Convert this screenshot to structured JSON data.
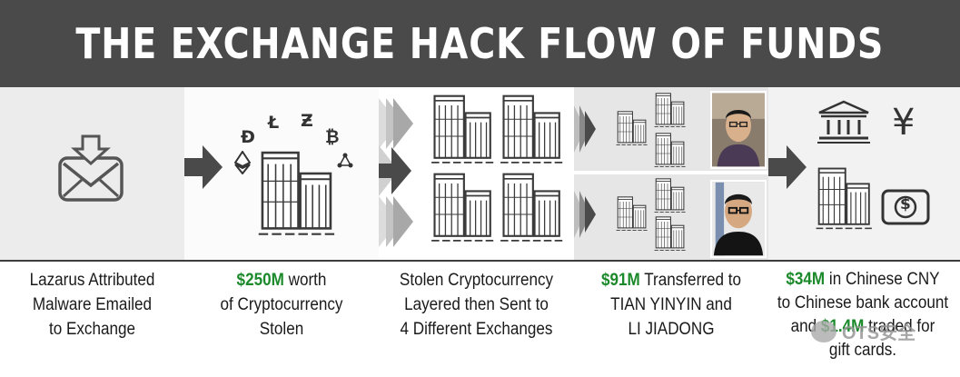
{
  "title": "THE EXCHANGE HACK FLOW OF FUNDS",
  "crypto_glyphs": {
    "dash": "Đ",
    "litecoin": "Ł",
    "zcash": "Ƶ",
    "bitcoin": "₿"
  },
  "cny_glyph": "¥",
  "dollar_glyph": "$",
  "steps": [
    {
      "lines": [
        "Lazarus Attributed",
        "Malware Emailed",
        "to Exchange"
      ]
    },
    {
      "highlight": "$250M",
      "rest": " worth",
      "lines": [
        "of Cryptocurrency",
        "Stolen"
      ]
    },
    {
      "lines": [
        "Stolen Cryptocurrency",
        "Layered then Sent to",
        "4 Different Exchanges"
      ]
    },
    {
      "highlight": "$91M",
      "rest": " Transferred to",
      "lines": [
        "TIAN YINYIN and",
        "LI JIADONG"
      ]
    },
    {
      "highlight": "$34M",
      "rest": " in Chinese CNY",
      "lines": [
        "to Chinese bank account"
      ],
      "line3_pre": "and ",
      "highlight2": "$1.4M",
      "line3_post": " traded for",
      "line4": "gift cards."
    }
  ],
  "watermark": "OTS安全",
  "colors": {
    "banner": "#4a4a4a",
    "highlight": "#1c8a2b",
    "arrow": "#4a4a4a"
  }
}
